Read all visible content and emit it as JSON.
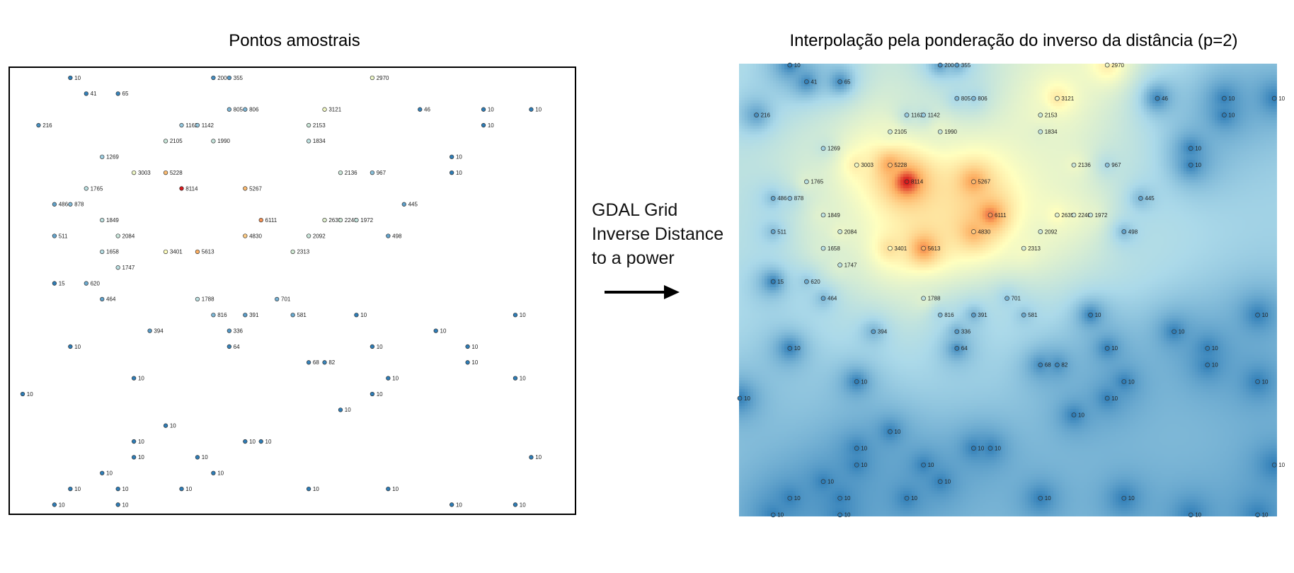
{
  "left_title": "Pontos amostrais",
  "right_title": "Interpolação pela ponderação do inverso da distância (p=2)",
  "method": {
    "line1": "GDAL Grid",
    "line2": "Inverse Distance",
    "line3": "to a power"
  },
  "colors": {
    "low": "#2c7bb6",
    "mid": "#ffffbf",
    "high": "#d7191c",
    "background": "#3a85bd"
  },
  "power": 2,
  "points": [
    {
      "c": 3,
      "r": 0,
      "v": "10"
    },
    {
      "c": 12,
      "r": 0,
      "v": "200"
    },
    {
      "c": 13,
      "r": 0,
      "v": "355"
    },
    {
      "c": 22,
      "r": 0,
      "v": "2970"
    },
    {
      "c": 4,
      "r": 1,
      "v": "41"
    },
    {
      "c": 6,
      "r": 1,
      "v": "65"
    },
    {
      "c": 13,
      "r": 2,
      "v": "805"
    },
    {
      "c": 14,
      "r": 2,
      "v": "806"
    },
    {
      "c": 19,
      "r": 2,
      "v": "3121"
    },
    {
      "c": 25,
      "r": 2,
      "v": "46"
    },
    {
      "c": 29,
      "r": 2,
      "v": "10"
    },
    {
      "c": 32,
      "r": 2,
      "v": "10"
    },
    {
      "c": 1,
      "r": 3,
      "v": "216"
    },
    {
      "c": 10,
      "r": 3,
      "v": "1162"
    },
    {
      "c": 11,
      "r": 3,
      "v": "1142"
    },
    {
      "c": 18,
      "r": 3,
      "v": "2153"
    },
    {
      "c": 29,
      "r": 3,
      "v": "10"
    },
    {
      "c": 9,
      "r": 4,
      "v": "2105"
    },
    {
      "c": 12,
      "r": 4,
      "v": "1990"
    },
    {
      "c": 18,
      "r": 4,
      "v": "1834"
    },
    {
      "c": 5,
      "r": 5,
      "v": "1269"
    },
    {
      "c": 27,
      "r": 5,
      "v": "10"
    },
    {
      "c": 7,
      "r": 6,
      "v": "3003"
    },
    {
      "c": 9,
      "r": 6,
      "v": "5228"
    },
    {
      "c": 20,
      "r": 6,
      "v": "2136"
    },
    {
      "c": 22,
      "r": 6,
      "v": "967"
    },
    {
      "c": 27,
      "r": 6,
      "v": "10"
    },
    {
      "c": 4,
      "r": 7,
      "v": "1765"
    },
    {
      "c": 10,
      "r": 7,
      "v": "8114"
    },
    {
      "c": 14,
      "r": 7,
      "v": "5267"
    },
    {
      "c": 2,
      "r": 8,
      "v": "486"
    },
    {
      "c": 3,
      "r": 8,
      "v": "878"
    },
    {
      "c": 24,
      "r": 8,
      "v": "445"
    },
    {
      "c": 5,
      "r": 9,
      "v": "1849"
    },
    {
      "c": 15,
      "r": 9,
      "v": "6111"
    },
    {
      "c": 19,
      "r": 9,
      "v": "2639"
    },
    {
      "c": 20,
      "r": 9,
      "v": "2240"
    },
    {
      "c": 21,
      "r": 9,
      "v": "1972"
    },
    {
      "c": 2,
      "r": 10,
      "v": "511"
    },
    {
      "c": 6,
      "r": 10,
      "v": "2084"
    },
    {
      "c": 14,
      "r": 10,
      "v": "4830"
    },
    {
      "c": 18,
      "r": 10,
      "v": "2092"
    },
    {
      "c": 23,
      "r": 10,
      "v": "498"
    },
    {
      "c": 5,
      "r": 11,
      "v": "1658"
    },
    {
      "c": 9,
      "r": 11,
      "v": "3401"
    },
    {
      "c": 11,
      "r": 11,
      "v": "5613"
    },
    {
      "c": 17,
      "r": 11,
      "v": "2313"
    },
    {
      "c": 6,
      "r": 12,
      "v": "1747"
    },
    {
      "c": 2,
      "r": 13,
      "v": "15"
    },
    {
      "c": 4,
      "r": 13,
      "v": "620"
    },
    {
      "c": 5,
      "r": 14,
      "v": "464"
    },
    {
      "c": 11,
      "r": 14,
      "v": "1788"
    },
    {
      "c": 16,
      "r": 14,
      "v": "701"
    },
    {
      "c": 12,
      "r": 15,
      "v": "816"
    },
    {
      "c": 14,
      "r": 15,
      "v": "391"
    },
    {
      "c": 17,
      "r": 15,
      "v": "581"
    },
    {
      "c": 21,
      "r": 15,
      "v": "10"
    },
    {
      "c": 31,
      "r": 15,
      "v": "10"
    },
    {
      "c": 8,
      "r": 16,
      "v": "394"
    },
    {
      "c": 13,
      "r": 16,
      "v": "336"
    },
    {
      "c": 26,
      "r": 16,
      "v": "10"
    },
    {
      "c": 3,
      "r": 17,
      "v": "10"
    },
    {
      "c": 13,
      "r": 17,
      "v": "64"
    },
    {
      "c": 22,
      "r": 17,
      "v": "10"
    },
    {
      "c": 28,
      "r": 17,
      "v": "10"
    },
    {
      "c": 18,
      "r": 18,
      "v": "68"
    },
    {
      "c": 19,
      "r": 18,
      "v": "82"
    },
    {
      "c": 28,
      "r": 18,
      "v": "10"
    },
    {
      "c": 7,
      "r": 19,
      "v": "10"
    },
    {
      "c": 23,
      "r": 19,
      "v": "10"
    },
    {
      "c": 31,
      "r": 19,
      "v": "10"
    },
    {
      "c": 0,
      "r": 20,
      "v": "10"
    },
    {
      "c": 22,
      "r": 20,
      "v": "10"
    },
    {
      "c": 20,
      "r": 21,
      "v": "10"
    },
    {
      "c": 9,
      "r": 22,
      "v": "10"
    },
    {
      "c": 7,
      "r": 23,
      "v": "10"
    },
    {
      "c": 14,
      "r": 23,
      "v": "10"
    },
    {
      "c": 15,
      "r": 23,
      "v": "10"
    },
    {
      "c": 7,
      "r": 24,
      "v": "10"
    },
    {
      "c": 11,
      "r": 24,
      "v": "10"
    },
    {
      "c": 32,
      "r": 24,
      "v": "10"
    },
    {
      "c": 5,
      "r": 25,
      "v": "10"
    },
    {
      "c": 12,
      "r": 25,
      "v": "10"
    },
    {
      "c": 3,
      "r": 26,
      "v": "10"
    },
    {
      "c": 6,
      "r": 26,
      "v": "10"
    },
    {
      "c": 10,
      "r": 26,
      "v": "10"
    },
    {
      "c": 18,
      "r": 26,
      "v": "10"
    },
    {
      "c": 23,
      "r": 26,
      "v": "10"
    },
    {
      "c": 2,
      "r": 27,
      "v": "10"
    },
    {
      "c": 6,
      "r": 27,
      "v": "10"
    },
    {
      "c": 27,
      "r": 27,
      "v": "10"
    },
    {
      "c": 31,
      "r": 27,
      "v": "10"
    }
  ]
}
